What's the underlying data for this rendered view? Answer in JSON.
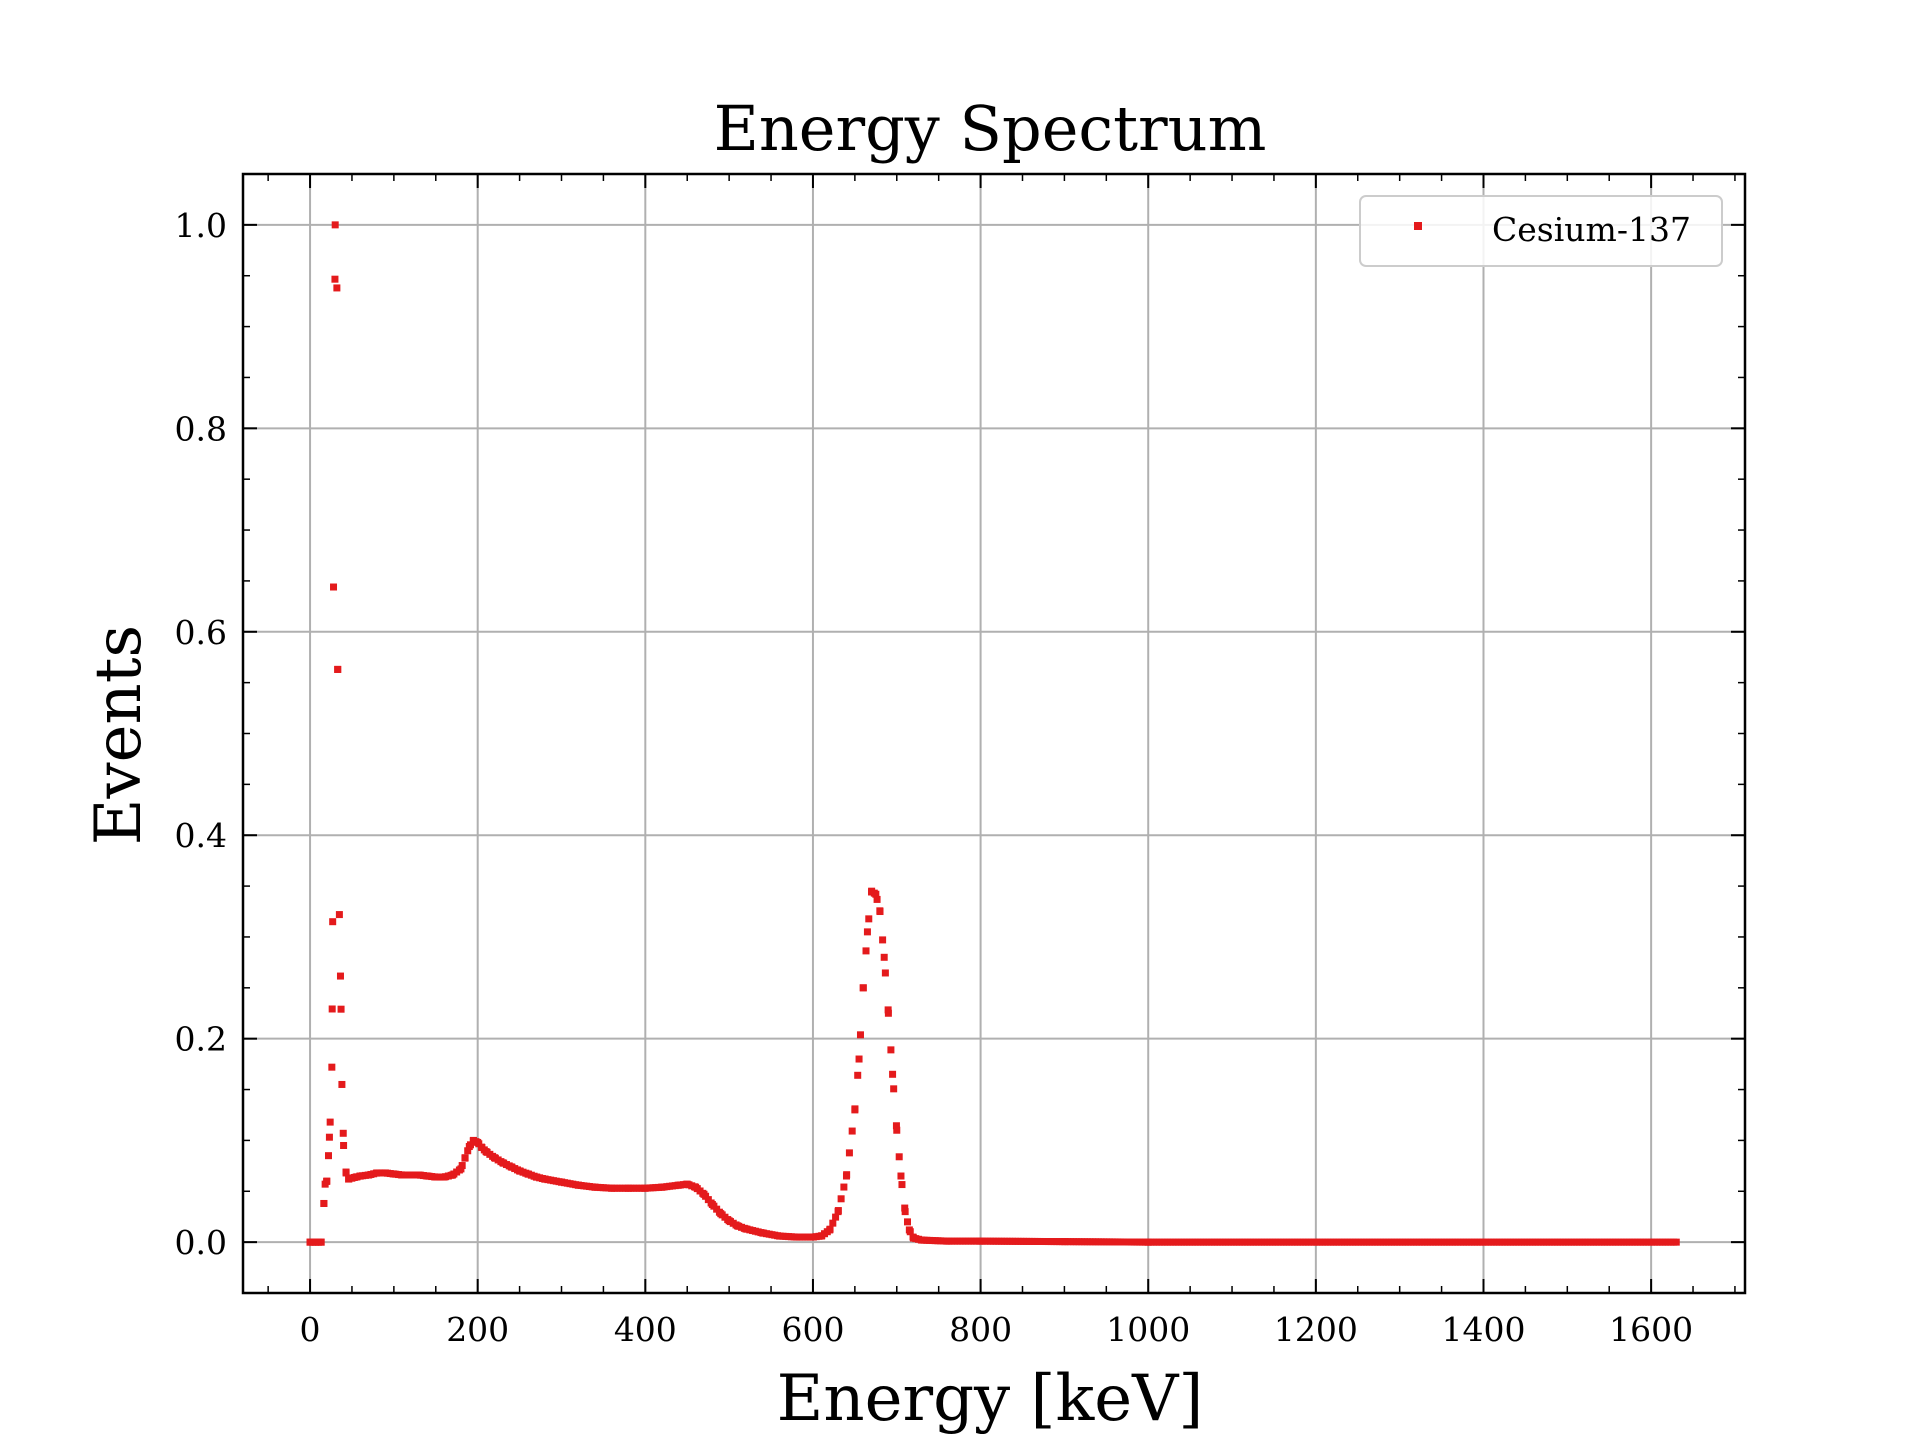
{
  "chart_data": {
    "type": "scatter",
    "title": "Energy Spectrum",
    "xlabel": "Energy [keV]",
    "ylabel": "Events",
    "xlim": [
      -80,
      1712
    ],
    "ylim": [
      -0.05,
      1.05
    ],
    "x_ticks": [
      0,
      200,
      400,
      600,
      800,
      1000,
      1200,
      1400,
      1600
    ],
    "y_ticks": [
      0.0,
      0.2,
      0.4,
      0.6,
      0.8,
      1.0
    ],
    "grid": true,
    "legend": "top-right",
    "series": [
      {
        "name": "Cesium-137",
        "color": "#e41a1c",
        "marker": "square",
        "x_step": 3.3,
        "points": [
          [
            0,
            0.0
          ],
          [
            3.3,
            0.0
          ],
          [
            6.6,
            0.0
          ],
          [
            9.9,
            0.0
          ],
          [
            13.2,
            0.0
          ],
          [
            16.5,
            0.038
          ],
          [
            18,
            0.057
          ],
          [
            20,
            0.06
          ],
          [
            22,
            0.085
          ],
          [
            24,
            0.118
          ],
          [
            26,
            0.172
          ],
          [
            27,
            0.315
          ],
          [
            28,
            0.644
          ],
          [
            30,
            1.0
          ],
          [
            32,
            0.938
          ],
          [
            33,
            0.563
          ],
          [
            35,
            0.322
          ],
          [
            37,
            0.229
          ],
          [
            38,
            0.155
          ],
          [
            40,
            0.095
          ],
          [
            43,
            0.068
          ],
          [
            46,
            0.062
          ],
          [
            50,
            0.063
          ],
          [
            55,
            0.064
          ],
          [
            60,
            0.065
          ],
          [
            70,
            0.066
          ],
          [
            80,
            0.068
          ],
          [
            90,
            0.068
          ],
          [
            100,
            0.067
          ],
          [
            110,
            0.066
          ],
          [
            120,
            0.066
          ],
          [
            130,
            0.066
          ],
          [
            140,
            0.065
          ],
          [
            150,
            0.064
          ],
          [
            160,
            0.064
          ],
          [
            170,
            0.066
          ],
          [
            180,
            0.072
          ],
          [
            185,
            0.083
          ],
          [
            190,
            0.094
          ],
          [
            195,
            0.1
          ],
          [
            200,
            0.098
          ],
          [
            205,
            0.093
          ],
          [
            210,
            0.089
          ],
          [
            220,
            0.083
          ],
          [
            230,
            0.078
          ],
          [
            240,
            0.074
          ],
          [
            250,
            0.07
          ],
          [
            260,
            0.067
          ],
          [
            270,
            0.064
          ],
          [
            280,
            0.062
          ],
          [
            300,
            0.059
          ],
          [
            320,
            0.056
          ],
          [
            340,
            0.054
          ],
          [
            360,
            0.053
          ],
          [
            380,
            0.053
          ],
          [
            400,
            0.053
          ],
          [
            420,
            0.054
          ],
          [
            440,
            0.056
          ],
          [
            450,
            0.057
          ],
          [
            460,
            0.054
          ],
          [
            470,
            0.047
          ],
          [
            480,
            0.037
          ],
          [
            490,
            0.028
          ],
          [
            500,
            0.021
          ],
          [
            510,
            0.016
          ],
          [
            520,
            0.013
          ],
          [
            540,
            0.009
          ],
          [
            560,
            0.006
          ],
          [
            580,
            0.005
          ],
          [
            600,
            0.005
          ],
          [
            610,
            0.006
          ],
          [
            620,
            0.012
          ],
          [
            630,
            0.03
          ],
          [
            640,
            0.065
          ],
          [
            650,
            0.13
          ],
          [
            655,
            0.18
          ],
          [
            660,
            0.25
          ],
          [
            665,
            0.305
          ],
          [
            670,
            0.345
          ],
          [
            675,
            0.342
          ],
          [
            680,
            0.325
          ],
          [
            685,
            0.28
          ],
          [
            690,
            0.225
          ],
          [
            695,
            0.165
          ],
          [
            700,
            0.11
          ],
          [
            705,
            0.065
          ],
          [
            710,
            0.03
          ],
          [
            715,
            0.012
          ],
          [
            720,
            0.004
          ],
          [
            730,
            0.002
          ],
          [
            760,
            0.001
          ],
          [
            800,
            0.001
          ],
          [
            900,
            0.0005
          ],
          [
            1000,
            0.0
          ],
          [
            1630,
            0.0
          ]
        ]
      }
    ]
  }
}
